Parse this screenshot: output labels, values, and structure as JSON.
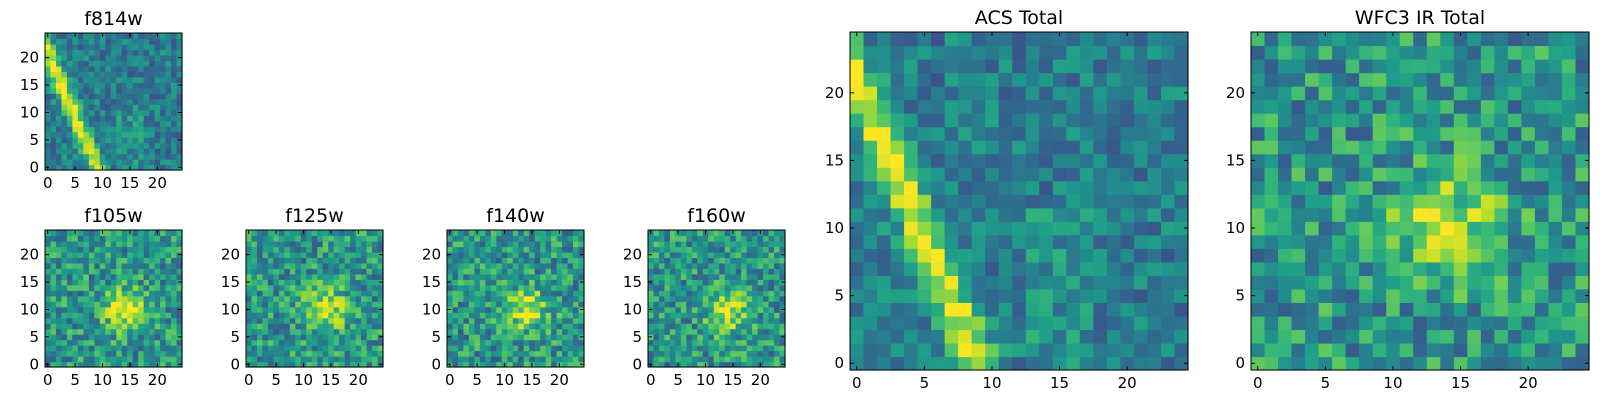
{
  "chart_data": [
    {
      "id": "f814w",
      "type": "heatmap",
      "title": "f814w",
      "xlim": [
        0,
        24
      ],
      "ylim": [
        0,
        24
      ],
      "xticks": [
        0,
        5,
        10,
        15,
        20
      ],
      "yticks": [
        0,
        5,
        10,
        15,
        20
      ],
      "feature": "ridge-diagonal",
      "colormap": "viridis"
    },
    {
      "id": "f105w",
      "type": "heatmap",
      "title": "f105w",
      "xlim": [
        0,
        24
      ],
      "ylim": [
        0,
        24
      ],
      "xticks": [
        0,
        5,
        10,
        15,
        20
      ],
      "yticks": [
        0,
        5,
        10,
        15,
        20
      ],
      "feature": "central-blob",
      "colormap": "viridis"
    },
    {
      "id": "f125w",
      "type": "heatmap",
      "title": "f125w",
      "xlim": [
        0,
        24
      ],
      "ylim": [
        0,
        24
      ],
      "xticks": [
        0,
        5,
        10,
        15,
        20
      ],
      "yticks": [
        0,
        5,
        10,
        15,
        20
      ],
      "feature": "central-blob",
      "colormap": "viridis"
    },
    {
      "id": "f140w",
      "type": "heatmap",
      "title": "f140w",
      "xlim": [
        0,
        24
      ],
      "ylim": [
        0,
        24
      ],
      "xticks": [
        0,
        5,
        10,
        15,
        20
      ],
      "yticks": [
        0,
        5,
        10,
        15,
        20
      ],
      "feature": "central-blob",
      "colormap": "viridis"
    },
    {
      "id": "f160w",
      "type": "heatmap",
      "title": "f160w",
      "xlim": [
        0,
        24
      ],
      "ylim": [
        0,
        24
      ],
      "xticks": [
        0,
        5,
        10,
        15,
        20
      ],
      "yticks": [
        0,
        5,
        10,
        15,
        20
      ],
      "feature": "central-blob",
      "colormap": "viridis"
    },
    {
      "id": "acs-total",
      "type": "heatmap",
      "title": "ACS Total",
      "xlim": [
        0,
        24
      ],
      "ylim": [
        0,
        24
      ],
      "xticks": [
        0,
        5,
        10,
        15,
        20
      ],
      "yticks": [
        0,
        5,
        10,
        15,
        20
      ],
      "feature": "ridge-diagonal",
      "colormap": "viridis"
    },
    {
      "id": "wfc3-ir-total",
      "type": "heatmap",
      "title": "WFC3 IR Total",
      "xlim": [
        0,
        24
      ],
      "ylim": [
        0,
        24
      ],
      "xticks": [
        0,
        5,
        10,
        15,
        20
      ],
      "yticks": [
        0,
        5,
        10,
        15,
        20
      ],
      "feature": "central-blob",
      "colormap": "viridis"
    }
  ]
}
